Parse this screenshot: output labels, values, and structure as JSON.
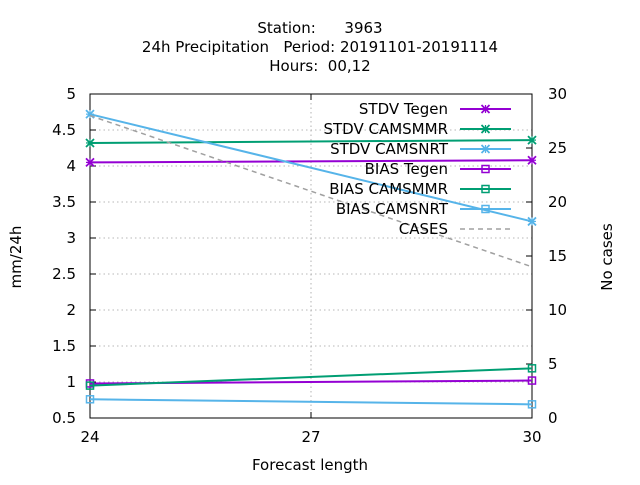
{
  "chart_data": {
    "type": "line",
    "title_lines": [
      "Station:      3963",
      "24h Precipitation   Period: 20191101-20191114",
      "Hours:  00,12"
    ],
    "xlabel": "Forecast length",
    "ylabel": "mm/24h",
    "y2label": "No cases",
    "x": [
      24,
      30
    ],
    "xlim": [
      24,
      30
    ],
    "xticks": [
      "24",
      "27",
      "30"
    ],
    "ylim": [
      0.5,
      5
    ],
    "yticks": [
      "0.5",
      "1",
      "1.5",
      "2",
      "2.5",
      "3",
      "3.5",
      "4",
      "4.5",
      "5"
    ],
    "y2lim": [
      0,
      30
    ],
    "y2ticks": [
      "0",
      "5",
      "10",
      "15",
      "20",
      "25",
      "30"
    ],
    "grid": true,
    "legend_position": "top-right",
    "series": [
      {
        "name": "STDV Tegen",
        "axis": "y",
        "values": [
          4.05,
          4.08
        ],
        "color": "#9400d3",
        "marker": "x",
        "dash": false
      },
      {
        "name": "STDV CAMSMMR",
        "axis": "y",
        "values": [
          4.32,
          4.36
        ],
        "color": "#009e73",
        "marker": "x",
        "dash": false
      },
      {
        "name": "STDV CAMSNRT",
        "axis": "y",
        "values": [
          4.72,
          3.23
        ],
        "color": "#56b4e9",
        "marker": "x",
        "dash": false
      },
      {
        "name": "BIAS Tegen",
        "axis": "y",
        "values": [
          0.98,
          1.02
        ],
        "color": "#9400d3",
        "marker": "square",
        "dash": false
      },
      {
        "name": "BIAS CAMSMMR",
        "axis": "y",
        "values": [
          0.95,
          1.19
        ],
        "color": "#009e73",
        "marker": "square",
        "dash": false
      },
      {
        "name": "BIAS CAMSNRT",
        "axis": "y",
        "values": [
          0.76,
          0.69
        ],
        "color": "#56b4e9",
        "marker": "square",
        "dash": false
      },
      {
        "name": "CASES",
        "axis": "y2",
        "values": [
          28,
          14
        ],
        "color": "#a0a0a0",
        "marker": "none",
        "dash": true
      }
    ]
  }
}
